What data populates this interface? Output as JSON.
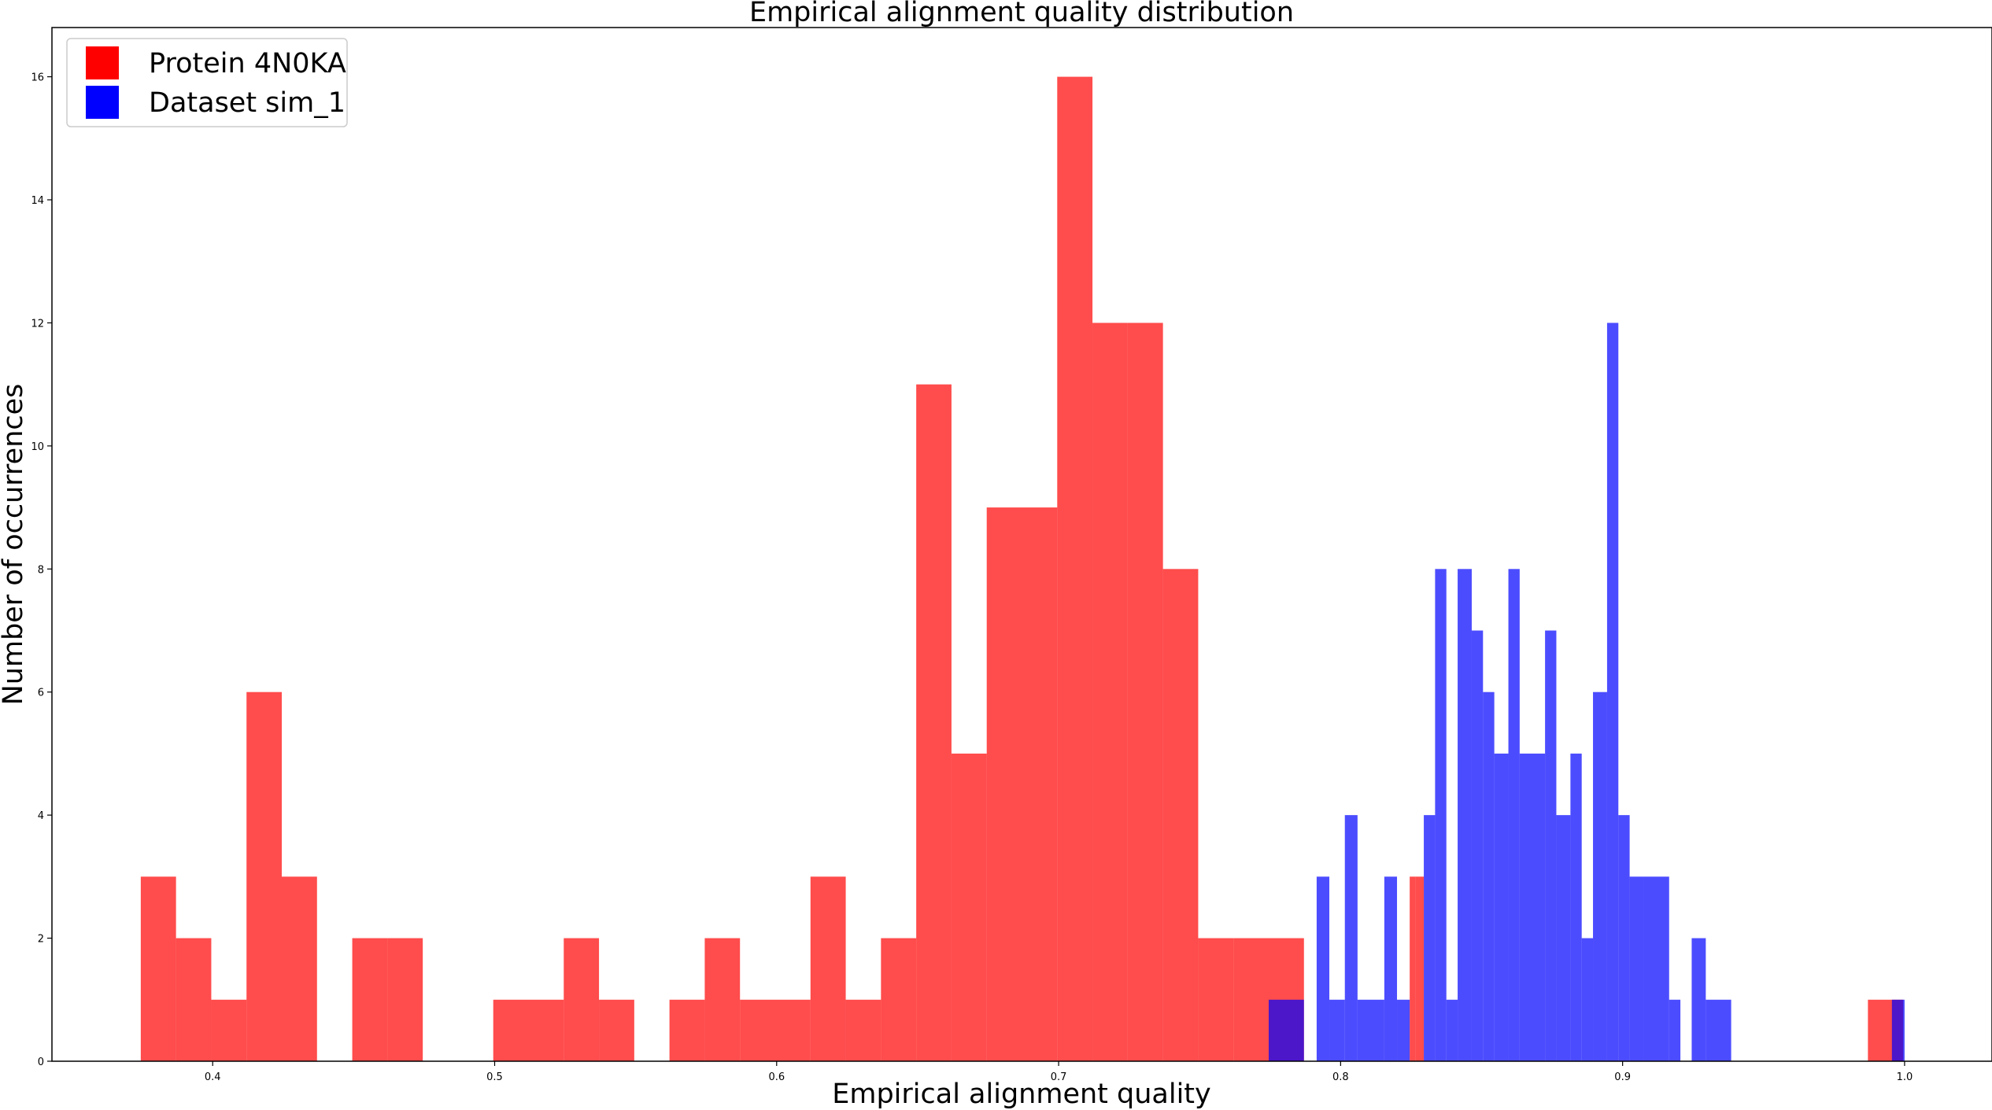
{
  "chart_data": {
    "type": "bar",
    "title": "Empirical alignment quality distribution",
    "xlabel": "Empirical alignment quality",
    "ylabel": "Number of occurrences",
    "xlim": [
      0.343,
      1.031
    ],
    "ylim": [
      0,
      16.8
    ],
    "xticks": [
      0.4,
      0.5,
      0.6,
      0.7,
      0.8,
      0.9,
      1.0
    ],
    "xtick_labels": [
      "0.4",
      "0.5",
      "0.6",
      "0.7",
      "0.8",
      "0.9",
      "1.0"
    ],
    "yticks": [
      0,
      2,
      4,
      6,
      8,
      10,
      12,
      14,
      16
    ],
    "ytick_labels": [
      "0",
      "2",
      "4",
      "6",
      "8",
      "10",
      "12",
      "14",
      "16"
    ],
    "grid": false,
    "legend_position": "top-left",
    "series": [
      {
        "name": "Protein 4N0KA",
        "color": "#ff0000",
        "opacity": 0.7,
        "bins": [
          [
            0.3745,
            0.387,
            3
          ],
          [
            0.387,
            0.3995,
            2
          ],
          [
            0.3995,
            0.412,
            1
          ],
          [
            0.412,
            0.4245,
            6
          ],
          [
            0.4245,
            0.437,
            3
          ],
          [
            0.437,
            0.4495,
            0
          ],
          [
            0.4495,
            0.462,
            2
          ],
          [
            0.462,
            0.4745,
            2
          ],
          [
            0.4745,
            0.487,
            0
          ],
          [
            0.487,
            0.4995,
            0
          ],
          [
            0.4995,
            0.512,
            1
          ],
          [
            0.512,
            0.5245,
            1
          ],
          [
            0.5245,
            0.537,
            2
          ],
          [
            0.537,
            0.5495,
            1
          ],
          [
            0.5495,
            0.562,
            0
          ],
          [
            0.562,
            0.5745,
            1
          ],
          [
            0.5745,
            0.587,
            2
          ],
          [
            0.587,
            0.5995,
            1
          ],
          [
            0.5995,
            0.612,
            1
          ],
          [
            0.612,
            0.6245,
            3
          ],
          [
            0.6245,
            0.637,
            1
          ],
          [
            0.637,
            0.6495,
            2
          ],
          [
            0.6495,
            0.662,
            11
          ],
          [
            0.662,
            0.6745,
            5
          ],
          [
            0.6745,
            0.687,
            9
          ],
          [
            0.687,
            0.6995,
            9
          ],
          [
            0.6995,
            0.712,
            16
          ],
          [
            0.712,
            0.7245,
            12
          ],
          [
            0.7245,
            0.737,
            12
          ],
          [
            0.737,
            0.7495,
            8
          ],
          [
            0.7495,
            0.762,
            2
          ],
          [
            0.762,
            0.7745,
            2
          ],
          [
            0.7745,
            0.787,
            2
          ],
          [
            0.8245,
            0.8265,
            3
          ],
          [
            0.8265,
            0.8295,
            3
          ],
          [
            0.987,
            0.9995,
            1
          ]
        ]
      },
      {
        "name": "Dataset sim_1",
        "color": "#0000ff",
        "opacity": 0.7,
        "bins": [
          [
            0.7745,
            0.787,
            1
          ],
          [
            0.7915,
            0.796,
            3
          ],
          [
            0.796,
            0.8015,
            1
          ],
          [
            0.8015,
            0.806,
            4
          ],
          [
            0.806,
            0.8155,
            1
          ],
          [
            0.8155,
            0.82,
            3
          ],
          [
            0.82,
            0.8245,
            1
          ],
          [
            0.8295,
            0.8335,
            4
          ],
          [
            0.8335,
            0.8375,
            8
          ],
          [
            0.8375,
            0.8415,
            1
          ],
          [
            0.8415,
            0.8465,
            8
          ],
          [
            0.8465,
            0.8505,
            7
          ],
          [
            0.8505,
            0.8545,
            6
          ],
          [
            0.8545,
            0.8595,
            5
          ],
          [
            0.8595,
            0.8635,
            8
          ],
          [
            0.8635,
            0.8725,
            5
          ],
          [
            0.8725,
            0.8765,
            7
          ],
          [
            0.8765,
            0.8815,
            4
          ],
          [
            0.8815,
            0.8855,
            5
          ],
          [
            0.8855,
            0.8895,
            2
          ],
          [
            0.8895,
            0.8945,
            6
          ],
          [
            0.8945,
            0.8985,
            12
          ],
          [
            0.8985,
            0.9025,
            4
          ],
          [
            0.9025,
            0.9075,
            3
          ],
          [
            0.9075,
            0.9165,
            3
          ],
          [
            0.9165,
            0.9205,
            1
          ],
          [
            0.9205,
            0.9245,
            0
          ],
          [
            0.9245,
            0.9295,
            2
          ],
          [
            0.9295,
            0.9385,
            1
          ],
          [
            0.9955,
            1.0,
            1
          ]
        ]
      }
    ]
  }
}
